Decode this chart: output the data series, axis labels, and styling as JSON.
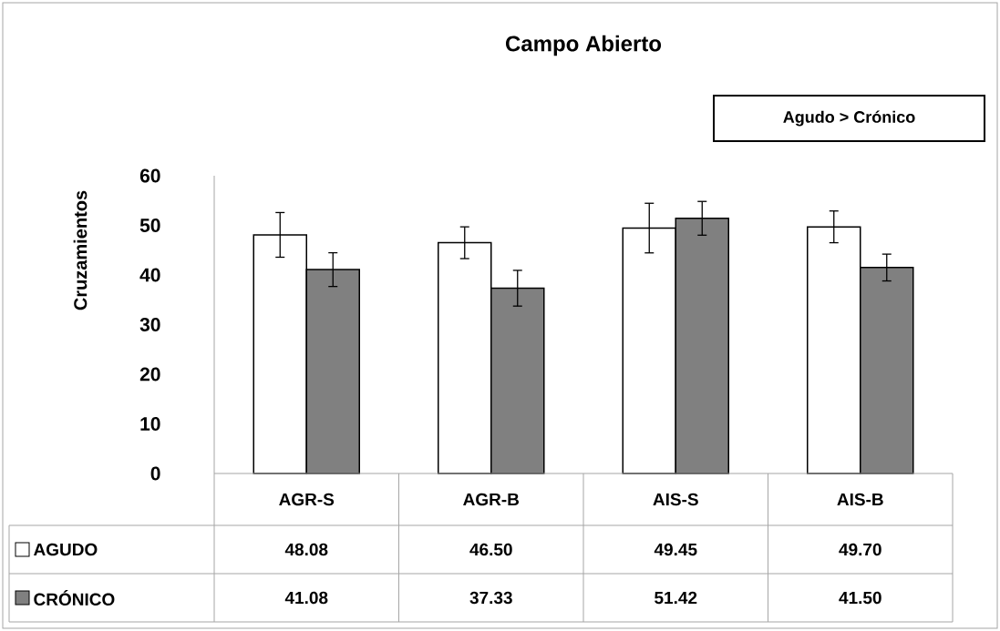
{
  "chart_data": {
    "type": "bar",
    "title": "Campo Abierto",
    "ylabel": "Cruzamientos",
    "annotations": [
      "Agudo > Crónico"
    ],
    "categories": [
      "AGR-S",
      "AGR-B",
      "AIS-S",
      "AIS-B"
    ],
    "series": [
      {
        "name": "AGUDO",
        "color": "#ffffff",
        "values": [
          48.08,
          46.5,
          49.45,
          49.7
        ],
        "errors": [
          4.5,
          3.2,
          5.0,
          3.2
        ],
        "value_labels": [
          "48.08",
          "46.50",
          "49.45",
          "49.70"
        ]
      },
      {
        "name": "CRÓNICO",
        "color": "#808080",
        "values": [
          41.08,
          37.33,
          51.42,
          41.5
        ],
        "errors": [
          3.4,
          3.6,
          3.4,
          2.7
        ],
        "value_labels": [
          "41.08",
          "37.33",
          "51.42",
          "41.50"
        ]
      }
    ],
    "ylim": [
      0,
      60
    ],
    "yticks": [
      0,
      10,
      20,
      30,
      40,
      50,
      60
    ],
    "legend": "bottom"
  }
}
